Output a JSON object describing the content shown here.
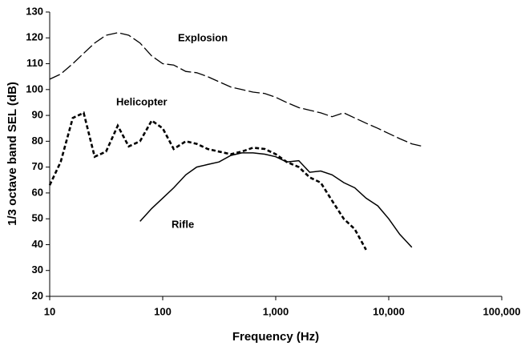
{
  "chart_data": {
    "type": "line",
    "x_label": "Frequency (Hz)",
    "y_label": "1/3 octave band SEL (dB)",
    "xscale": "log",
    "xlim": [
      10,
      100000
    ],
    "xticks": [
      10,
      100,
      {
        "value": 1000,
        "label": "1,000"
      },
      {
        "value": 10000,
        "label": "10,000"
      },
      {
        "value": 100000,
        "label": "100,000"
      }
    ],
    "ylim": [
      20,
      130
    ],
    "yticks": [
      20,
      30,
      40,
      50,
      60,
      70,
      80,
      90,
      100,
      110,
      120,
      130
    ],
    "grid": false,
    "series": [
      {
        "name": "Explosion",
        "color": "#000000",
        "dash": "long",
        "x": [
          10,
          12.5,
          16,
          20,
          25,
          31.5,
          40,
          50,
          63,
          80,
          100,
          125,
          160,
          200,
          250,
          315,
          400,
          500,
          630,
          800,
          1000,
          1250,
          1600,
          2000,
          2500,
          3150,
          4000,
          5000,
          6300,
          8000,
          10000,
          12500,
          16000,
          20000
        ],
        "values": [
          104,
          106,
          110,
          114,
          118,
          121,
          122,
          121,
          118,
          113,
          110,
          109.5,
          107,
          106.5,
          105,
          103,
          101,
          100,
          99,
          98.5,
          97,
          95,
          93,
          92,
          91,
          89.5,
          91,
          89,
          87,
          85,
          83,
          81,
          79,
          78
        ]
      },
      {
        "name": "Helicopter",
        "color": "#000000",
        "dash": "short",
        "x": [
          10,
          12.5,
          16,
          20,
          25,
          31.5,
          40,
          50,
          63,
          80,
          100,
          125,
          160,
          200,
          250,
          315,
          400,
          500,
          630,
          800,
          1000,
          1250,
          1600,
          2000,
          2500,
          3150,
          4000,
          5000,
          6300
        ],
        "values": [
          63,
          72,
          89,
          91,
          74,
          76,
          86,
          78,
          80,
          88,
          85,
          77,
          80,
          79,
          77,
          76,
          75,
          76,
          77.5,
          77,
          75,
          72,
          70,
          66,
          64,
          57,
          50,
          46,
          38
        ]
      },
      {
        "name": "Rifle",
        "color": "#000000",
        "dash": "solid",
        "x": [
          63,
          80,
          100,
          125,
          160,
          200,
          250,
          315,
          400,
          500,
          630,
          800,
          1000,
          1250,
          1600,
          2000,
          2500,
          3150,
          4000,
          5000,
          6300,
          8000,
          10000,
          12500,
          16000
        ],
        "values": [
          49,
          54,
          58,
          62,
          67,
          70,
          71,
          72,
          74.5,
          75.5,
          75.5,
          75,
          74,
          72,
          72.5,
          68,
          68.5,
          67,
          64,
          62,
          58,
          55,
          50,
          44,
          39
        ]
      }
    ]
  }
}
